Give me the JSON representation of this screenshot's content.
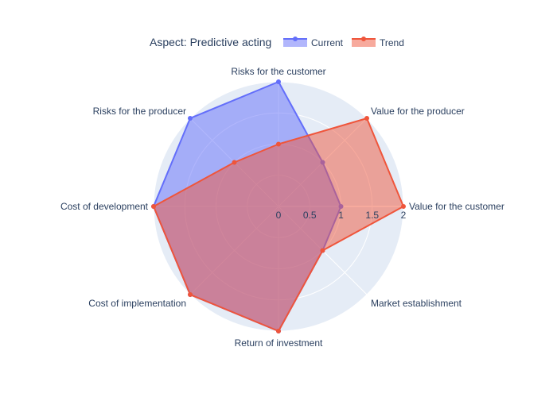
{
  "chart_data": {
    "type": "radar",
    "title": "Aspect: Predictive acting",
    "categories": [
      "Value for the customer",
      "Value for the producer",
      "Risks for the customer",
      "Risks for the producer",
      "Cost of development",
      "Cost of implementation",
      "Return of investment",
      "Market establishment"
    ],
    "series": [
      {
        "name": "Current",
        "values": [
          1,
          1,
          2,
          2,
          2,
          2,
          2,
          1
        ],
        "color": "#636efa"
      },
      {
        "name": "Trend",
        "values": [
          2,
          2,
          1,
          1,
          2,
          2,
          2,
          1
        ],
        "color": "#ef553b"
      }
    ],
    "radial_range": [
      0,
      2
    ],
    "radial_ticks": [
      "0",
      "0.5",
      "1",
      "1.5",
      "2"
    ],
    "legend_position": "top-right",
    "grid": true
  }
}
